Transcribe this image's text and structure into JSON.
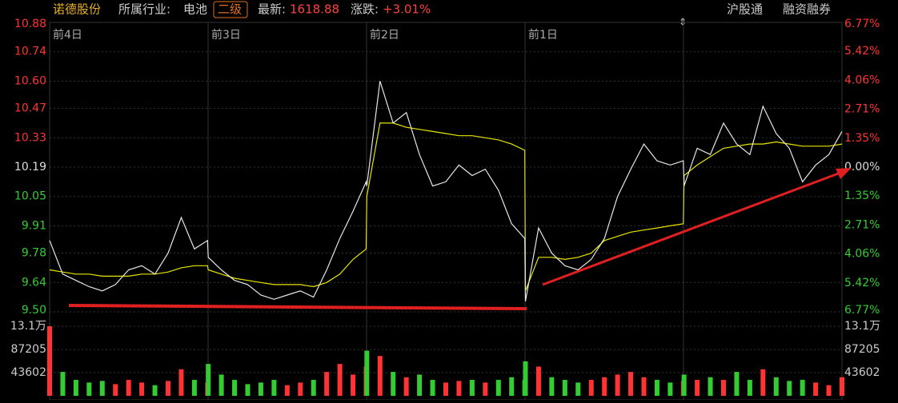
{
  "header": {
    "name": "诺德股份",
    "industry_label": "所属行业:",
    "industry": "电池",
    "level": "二级",
    "latest_label": "最新:",
    "latest": "1618.88",
    "change_label": "涨跌:",
    "change": "+3.01%",
    "tag1": "沪股通",
    "tag2": "融资融券"
  },
  "chart_data": {
    "type": "line",
    "day_labels": [
      "前4日",
      "前3日",
      "前2日",
      "前1日"
    ],
    "x": [
      0,
      20,
      40,
      60,
      80,
      100,
      120,
      140,
      160,
      180,
      200,
      220,
      240,
      241,
      261,
      281,
      301,
      321,
      341,
      361,
      381,
      401,
      421,
      441,
      461,
      481,
      482,
      502,
      522,
      542,
      562,
      582,
      602,
      622,
      642,
      662,
      682,
      702,
      722,
      723,
      743,
      763,
      783,
      803,
      823,
      843,
      863,
      883,
      903,
      923,
      943,
      963,
      964,
      984,
      1004,
      1024,
      1044,
      1064,
      1084,
      1104,
      1124,
      1144,
      1164,
      1184,
      1204
    ],
    "xlim": [
      0,
      1204
    ],
    "series": [
      {
        "name": "price",
        "color": "#e6e6e6",
        "values": [
          9.84,
          9.68,
          9.65,
          9.62,
          9.6,
          9.63,
          9.7,
          9.72,
          9.68,
          9.78,
          9.95,
          9.8,
          9.84,
          9.76,
          9.7,
          9.65,
          9.63,
          9.58,
          9.56,
          9.58,
          9.6,
          9.57,
          9.7,
          9.85,
          9.98,
          10.12,
          10.1,
          10.6,
          10.4,
          10.45,
          10.25,
          10.1,
          10.12,
          10.2,
          10.15,
          10.18,
          10.08,
          9.92,
          9.85,
          9.55,
          9.9,
          9.78,
          9.72,
          9.7,
          9.75,
          9.85,
          10.05,
          10.18,
          10.3,
          10.22,
          10.2,
          10.22,
          10.1,
          10.28,
          10.25,
          10.4,
          10.3,
          10.25,
          10.48,
          10.35,
          10.28,
          10.12,
          10.2,
          10.25,
          10.36
        ]
      },
      {
        "name": "average",
        "color": "#e6e600",
        "values": [
          9.7,
          9.69,
          9.68,
          9.68,
          9.67,
          9.67,
          9.67,
          9.68,
          9.68,
          9.69,
          9.71,
          9.72,
          9.72,
          9.7,
          9.68,
          9.66,
          9.65,
          9.64,
          9.63,
          9.63,
          9.63,
          9.62,
          9.64,
          9.68,
          9.75,
          9.8,
          10.05,
          10.4,
          10.4,
          10.38,
          10.37,
          10.36,
          10.35,
          10.34,
          10.34,
          10.33,
          10.32,
          10.3,
          10.27,
          9.6,
          9.76,
          9.76,
          9.75,
          9.76,
          9.78,
          9.84,
          9.86,
          9.88,
          9.89,
          9.9,
          9.91,
          9.92,
          10.15,
          10.2,
          10.24,
          10.28,
          10.29,
          10.3,
          10.3,
          10.31,
          10.3,
          10.29,
          10.29,
          10.29,
          10.3
        ]
      }
    ],
    "ylim": [
      9.5,
      10.88
    ],
    "yticks": [
      10.88,
      10.74,
      {
        "value": 10.6,
        "label": "10.60"
      },
      10.47,
      10.33,
      10.19,
      10.05,
      9.91,
      9.78,
      9.64,
      {
        "value": 9.5,
        "label": "9.50"
      }
    ],
    "y2lim": [
      -6.77,
      6.77
    ],
    "y2ticks": [
      {
        "value": 6.77,
        "label": "6.77%"
      },
      {
        "value": 5.42,
        "label": "5.42%"
      },
      {
        "value": 4.06,
        "label": "4.06%"
      },
      {
        "value": 2.71,
        "label": "2.71%"
      },
      {
        "value": 1.35,
        "label": "1.35%"
      },
      {
        "value": 0,
        "label": "0.00%"
      },
      {
        "value": -1.35,
        "label": "1.35%"
      },
      {
        "value": -2.71,
        "label": "2.71%"
      },
      {
        "value": -4.06,
        "label": "4.06%"
      },
      {
        "value": -5.42,
        "label": "5.42%"
      },
      {
        "value": -6.77,
        "label": "6.77%"
      }
    ],
    "up_color": "#ff3333",
    "down_color": "#33cc33",
    "flat_color": "#dddddd",
    "volume": {
      "values": [
        131000,
        45000,
        30000,
        25000,
        28000,
        22000,
        30000,
        25000,
        20000,
        28000,
        50000,
        30000,
        25000,
        60000,
        40000,
        30000,
        22000,
        25000,
        30000,
        20000,
        25000,
        30000,
        45000,
        60000,
        40000,
        55000,
        85000,
        75000,
        45000,
        35000,
        40000,
        30000,
        25000,
        28000,
        30000,
        25000,
        30000,
        35000,
        30000,
        65000,
        55000,
        35000,
        30000,
        25000,
        30000,
        35000,
        40000,
        45000,
        35000,
        30000,
        25000,
        28000,
        40000,
        30000,
        35000,
        30000,
        45000,
        30000,
        50000,
        35000,
        28000,
        30000,
        25000,
        20000,
        35000
      ],
      "ylim": [
        0,
        131000
      ],
      "yticks": [
        {
          "value": 131000,
          "label": "13.1万"
        },
        87205,
        43602
      ]
    },
    "grid": true
  }
}
